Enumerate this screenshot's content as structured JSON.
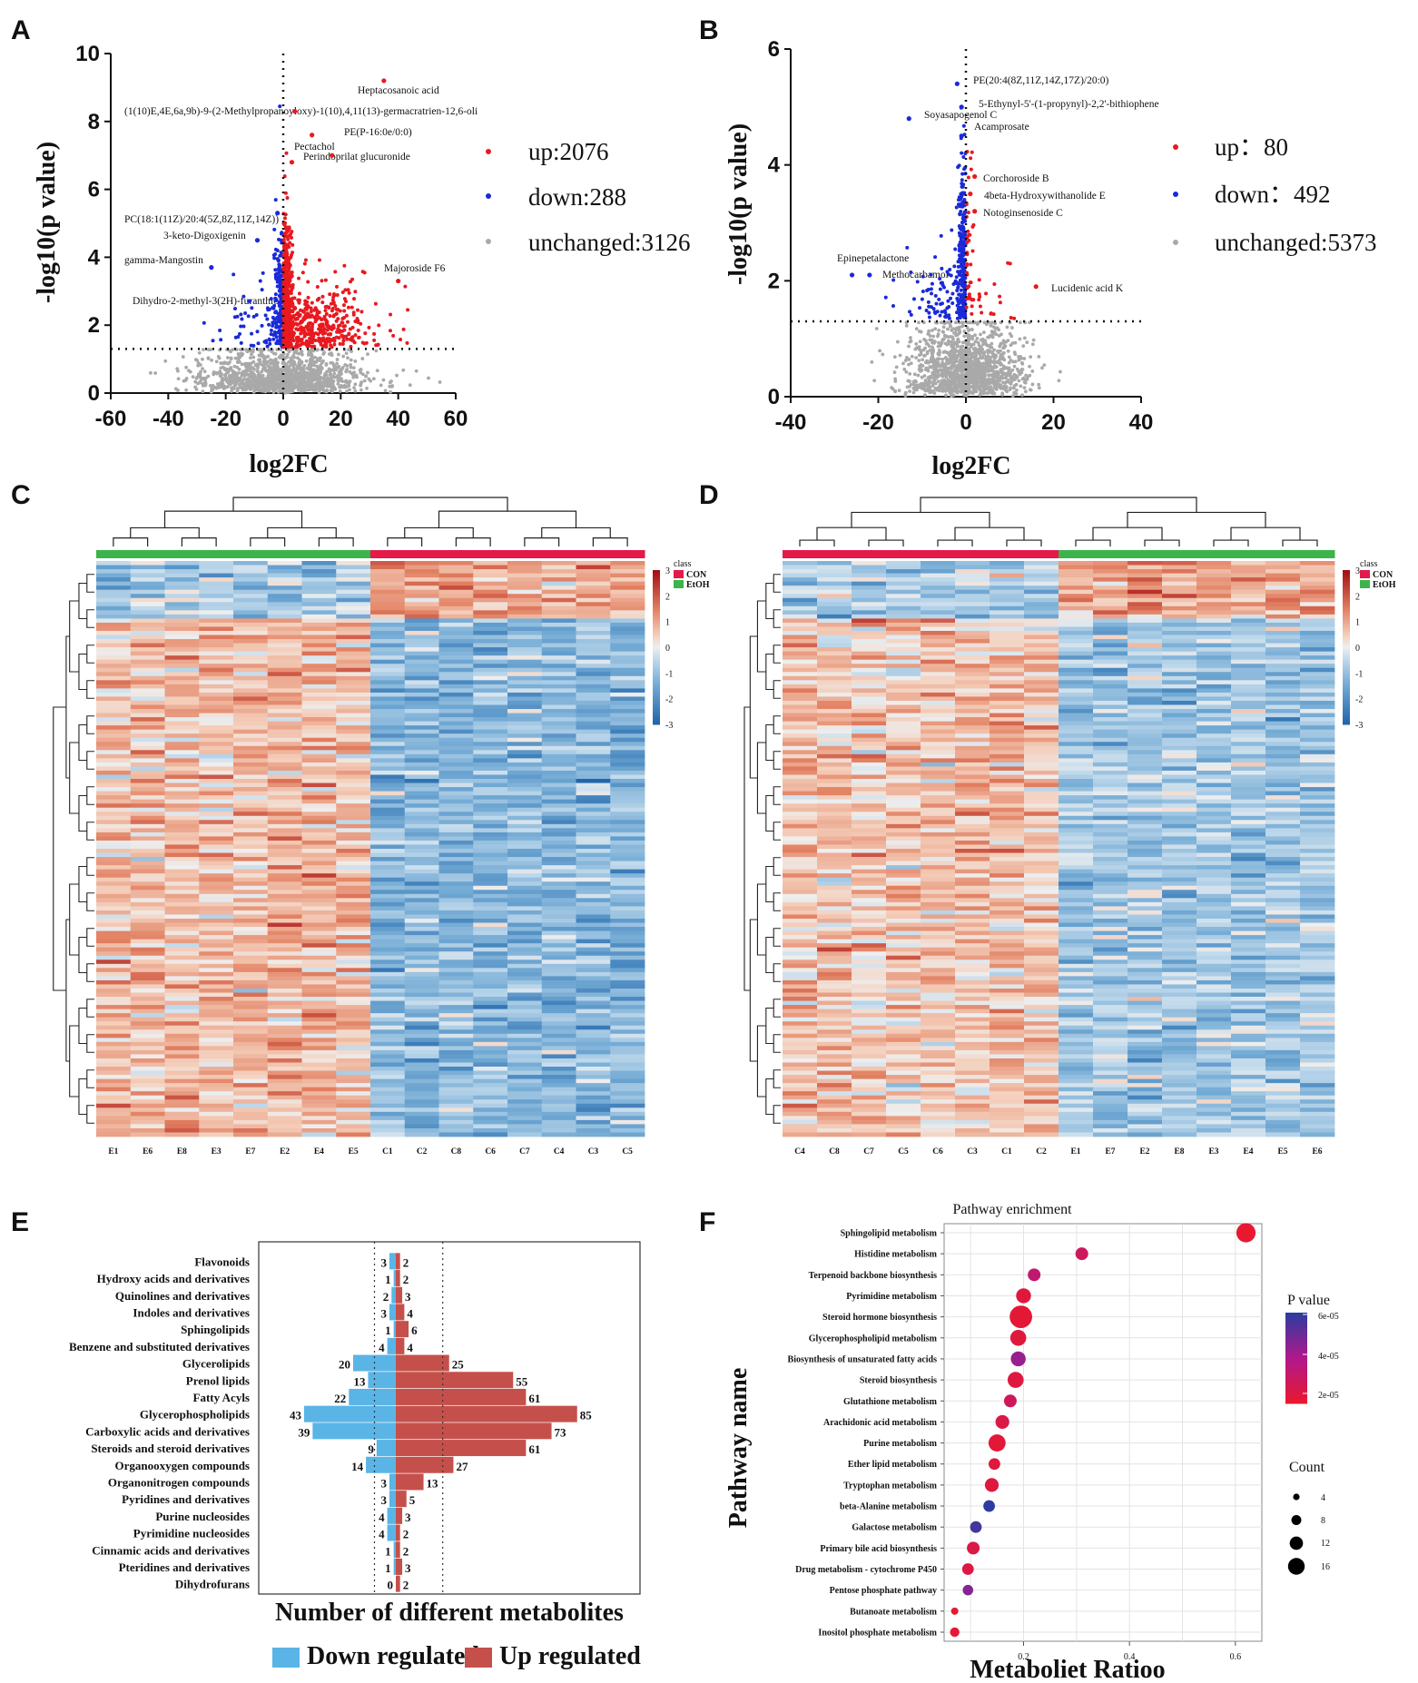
{
  "panel_labels": [
    "A",
    "B",
    "C",
    "D",
    "E",
    "F"
  ],
  "colors": {
    "up": "#e8191f",
    "down": "#1a2ad8",
    "unchanged": "#a9a9a9",
    "bar_down": "#5ab4e6",
    "bar_up": "#c5504b",
    "class_con": "#e31a4a",
    "class_etoh": "#3cb44b"
  },
  "chart_data": [
    {
      "id": "A",
      "type": "scatter",
      "title": "",
      "xlabel": "log2FC",
      "ylabel": "-log10(p value)",
      "xlim": [
        -60,
        60
      ],
      "ylim": [
        0,
        10
      ],
      "xticks": [
        -60,
        -40,
        -20,
        0,
        20,
        40,
        60
      ],
      "yticks": [
        0,
        2,
        4,
        6,
        8,
        10
      ],
      "threshold_y": 1.3,
      "legend": [
        {
          "name": "up",
          "label": "up:2076"
        },
        {
          "name": "down",
          "label": "down:288"
        },
        {
          "name": "unchanged",
          "label": "unchanged:3126"
        }
      ],
      "labeled_points": [
        {
          "label": "Heptacosanoic acid",
          "x": 35,
          "y": 9.2,
          "cls": "up"
        },
        {
          "label": "(1(10)E,4E,6a,9b)-9-(2-Methylpropanoyloxy)-1(10),4,11(13)-germacratrien-12,6-oli",
          "x": 4,
          "y": 8.3,
          "cls": "up"
        },
        {
          "label": "PE(P-16:0e/0:0)",
          "x": 17,
          "y": 7.0,
          "cls": "up"
        },
        {
          "label": "Pectachol",
          "x": 10,
          "y": 7.6,
          "cls": "up"
        },
        {
          "label": "Perindoprilat glucuronide",
          "x": 3,
          "y": 6.8,
          "cls": "up"
        },
        {
          "label": "PC(18:1(11Z)/20:4(5Z,8Z,11Z,14Z))",
          "x": -2,
          "y": 5.3,
          "cls": "down"
        },
        {
          "label": "3-keto-Digoxigenin",
          "x": -9,
          "y": 4.5,
          "cls": "down"
        },
        {
          "label": "gamma-Mangostin",
          "x": -25,
          "y": 3.7,
          "cls": "down"
        },
        {
          "label": "Majoroside F6",
          "x": 40,
          "y": 3.3,
          "cls": "up"
        },
        {
          "label": "Dihydro-2-methyl-3(2H)-furanthione",
          "x": 4,
          "y": 2.5,
          "cls": "up"
        }
      ]
    },
    {
      "id": "B",
      "type": "scatter",
      "title": "",
      "xlabel": "log2FC",
      "ylabel": "-log10(p value)",
      "xlim": [
        -40,
        40
      ],
      "ylim": [
        0,
        6
      ],
      "xticks": [
        -40,
        -20,
        0,
        20,
        40
      ],
      "yticks": [
        0,
        2,
        4,
        6
      ],
      "threshold_y": 1.3,
      "legend": [
        {
          "name": "up",
          "label": "up：80"
        },
        {
          "name": "down",
          "label": "down：492"
        },
        {
          "name": "unchanged",
          "label": "unchanged:5373"
        }
      ],
      "labeled_points": [
        {
          "label": "PE(20:4(8Z,11Z,14Z,17Z)/20:0)",
          "x": -2,
          "y": 5.4,
          "cls": "down"
        },
        {
          "label": "5-Ethynyl-5'-(1-propynyl)-2,2'-bithiophene",
          "x": -1,
          "y": 5.0,
          "cls": "down"
        },
        {
          "label": "Soyasapogenol C",
          "x": -13,
          "y": 4.8,
          "cls": "down"
        },
        {
          "label": "Acamprosate",
          "x": -1,
          "y": 4.5,
          "cls": "down"
        },
        {
          "label": "Corchoroside B",
          "x": 2,
          "y": 3.8,
          "cls": "up"
        },
        {
          "label": "4beta-Hydroxywithanolide E",
          "x": 1,
          "y": 3.5,
          "cls": "up"
        },
        {
          "label": "Notoginsenoside C",
          "x": 2,
          "y": 3.2,
          "cls": "up"
        },
        {
          "label": "Epinepetalactone",
          "x": -26,
          "y": 2.1,
          "cls": "down"
        },
        {
          "label": "Methocarbamol",
          "x": -22,
          "y": 2.1,
          "cls": "down"
        },
        {
          "label": "Lucidenic acid K",
          "x": 16,
          "y": 1.9,
          "cls": "up"
        }
      ]
    },
    {
      "id": "C",
      "type": "heatmap",
      "columns": [
        "E1",
        "E6",
        "E8",
        "E3",
        "E7",
        "E2",
        "E4",
        "E5",
        "C1",
        "C2",
        "C8",
        "C6",
        "C7",
        "C4",
        "C3",
        "C5"
      ],
      "column_class": [
        "EtOH",
        "EtOH",
        "EtOH",
        "EtOH",
        "EtOH",
        "EtOH",
        "EtOH",
        "EtOH",
        "CON",
        "CON",
        "CON",
        "CON",
        "CON",
        "CON",
        "CON",
        "CON"
      ],
      "legend_title": "class",
      "classes": [
        "CON",
        "EtOH"
      ],
      "color_range": [
        -3,
        3
      ],
      "colorbar_ticks": [
        3,
        2,
        1,
        0,
        -1,
        -2,
        -3
      ]
    },
    {
      "id": "D",
      "type": "heatmap",
      "columns": [
        "C4",
        "C8",
        "C7",
        "C5",
        "C6",
        "C3",
        "C1",
        "C2",
        "E1",
        "E7",
        "E2",
        "E8",
        "E3",
        "E4",
        "E5",
        "E6"
      ],
      "column_class": [
        "CON",
        "CON",
        "CON",
        "CON",
        "CON",
        "CON",
        "CON",
        "CON",
        "EtOH",
        "EtOH",
        "EtOH",
        "EtOH",
        "EtOH",
        "EtOH",
        "EtOH",
        "EtOH"
      ],
      "legend_title": "class",
      "classes": [
        "CON",
        "EtOH"
      ],
      "color_range": [
        -3,
        3
      ],
      "colorbar_ticks": [
        3,
        2,
        1,
        0,
        -1,
        -2,
        -3
      ]
    },
    {
      "id": "E",
      "type": "bar",
      "xlabel": "Number of different metabolites",
      "categories": [
        "Flavonoids",
        "Hydroxy acids and derivatives",
        "Quinolines and derivatives",
        "Indoles and derivatives",
        "Sphingolipids",
        "Benzene and substituted derivatives",
        "Glycerolipids",
        "Prenol lipids",
        "Fatty Acyls",
        "Glycerophospholipids",
        "Carboxylic acids and derivatives",
        "Steroids and steroid derivatives",
        "Organooxygen compounds",
        "Organonitrogen compounds",
        "Pyridines and derivatives",
        "Purine nucleosides",
        "Pyrimidine nucleosides",
        "Cinnamic acids and derivatives",
        "Pteridines and derivatives",
        "Dihydrofurans"
      ],
      "series": [
        {
          "name": "Down regulated",
          "values": [
            3,
            1,
            2,
            3,
            1,
            4,
            20,
            13,
            22,
            43,
            39,
            9,
            14,
            3,
            3,
            4,
            4,
            1,
            1,
            0
          ]
        },
        {
          "name": "Up regulated",
          "values": [
            2,
            2,
            3,
            4,
            6,
            4,
            25,
            55,
            61,
            85,
            73,
            61,
            27,
            13,
            5,
            3,
            2,
            2,
            3,
            2
          ]
        }
      ],
      "ref_lines": [
        -10,
        22
      ]
    },
    {
      "id": "F",
      "type": "scatter",
      "title": "Pathway enrichment",
      "xlabel": "Metaboliet Ratioo",
      "ylabel": "Pathway name",
      "xlim": [
        0.05,
        0.65
      ],
      "xticks": [
        0.2,
        0.4,
        0.6
      ],
      "pathways": [
        "Sphingolipid metabolism",
        "Histidine metabolism",
        "Terpenoid backbone biosynthesis",
        "Pyrimidine metabolism",
        "Steroid hormone biosynthesis",
        "Glycerophospholipid metabolism",
        "Biosynthesis of unsaturated fatty acids",
        "Steroid biosynthesis",
        "Glutathione metabolism",
        "Arachidonic acid metabolism",
        "Purine metabolism",
        "Ether lipid metabolism",
        "Tryptophan metabolism",
        "beta-Alanine metabolism",
        "Galactose metabolism",
        "Primary bile acid biosynthesis",
        "Drug metabolism - cytochrome P450",
        "Pentose phosphate pathway",
        "Butanoate metabolism",
        "Inositol phosphate metabolism"
      ],
      "ratio": [
        0.62,
        0.31,
        0.22,
        0.2,
        0.195,
        0.19,
        0.19,
        0.185,
        0.175,
        0.16,
        0.15,
        0.145,
        0.14,
        0.135,
        0.11,
        0.105,
        0.095,
        0.095,
        0.07,
        0.07
      ],
      "count": [
        14,
        8,
        8,
        10,
        17,
        11,
        10,
        11,
        8,
        9,
        12,
        7,
        9,
        7,
        7,
        8,
        7,
        6,
        3,
        5
      ],
      "pvalue": [
        1e-06,
        1.5e-05,
        2.2e-05,
        5e-06,
        3e-06,
        5e-06,
        3.6e-05,
        6e-06,
        1.5e-05,
        8e-06,
        4e-06,
        5e-06,
        6e-06,
        6e-05,
        5.5e-05,
        8e-06,
        7e-06,
        4e-05,
        2e-06,
        3e-06
      ],
      "legend_pvalue": {
        "title": "P value",
        "ticks": [
          "6e-05",
          "4e-05",
          "2e-05"
        ],
        "range": [
          1e-06,
          6e-05
        ]
      },
      "legend_count": {
        "title": "Count",
        "values": [
          4,
          8,
          12,
          16
        ]
      }
    }
  ]
}
